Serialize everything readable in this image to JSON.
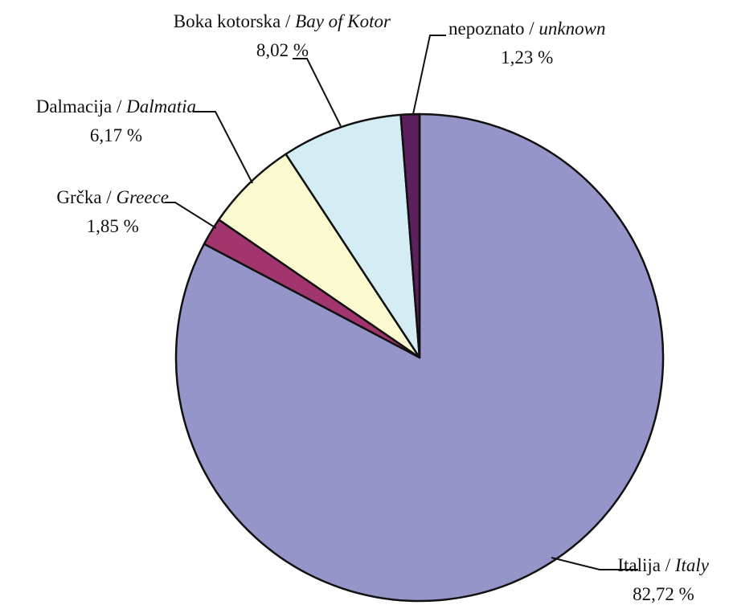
{
  "chart_data": {
    "type": "pie",
    "title": "",
    "start": "12 o'clock",
    "direction": "clockwise",
    "slices": [
      {
        "label_local": "Italija",
        "label_en": "Italy",
        "value": 82.72,
        "display": "82,72 %",
        "color": "#9595c9"
      },
      {
        "label_local": "Grčka",
        "label_en": "Greece",
        "value": 1.85,
        "display": "1,85 %",
        "color": "#a3356e"
      },
      {
        "label_local": "Dalmacija",
        "label_en": "Dalmatia",
        "value": 6.17,
        "display": "6,17 %",
        "color": "#fbf9cf"
      },
      {
        "label_local": "Boka kotorska",
        "label_en": "Bay of Kotor",
        "value": 8.02,
        "display": "8,02 %",
        "color": "#d4ecf4"
      },
      {
        "label_local": "nepoznato",
        "label_en": "unknown",
        "value": 1.23,
        "display": "1,23 %",
        "color": "#5e1f5f"
      }
    ]
  }
}
